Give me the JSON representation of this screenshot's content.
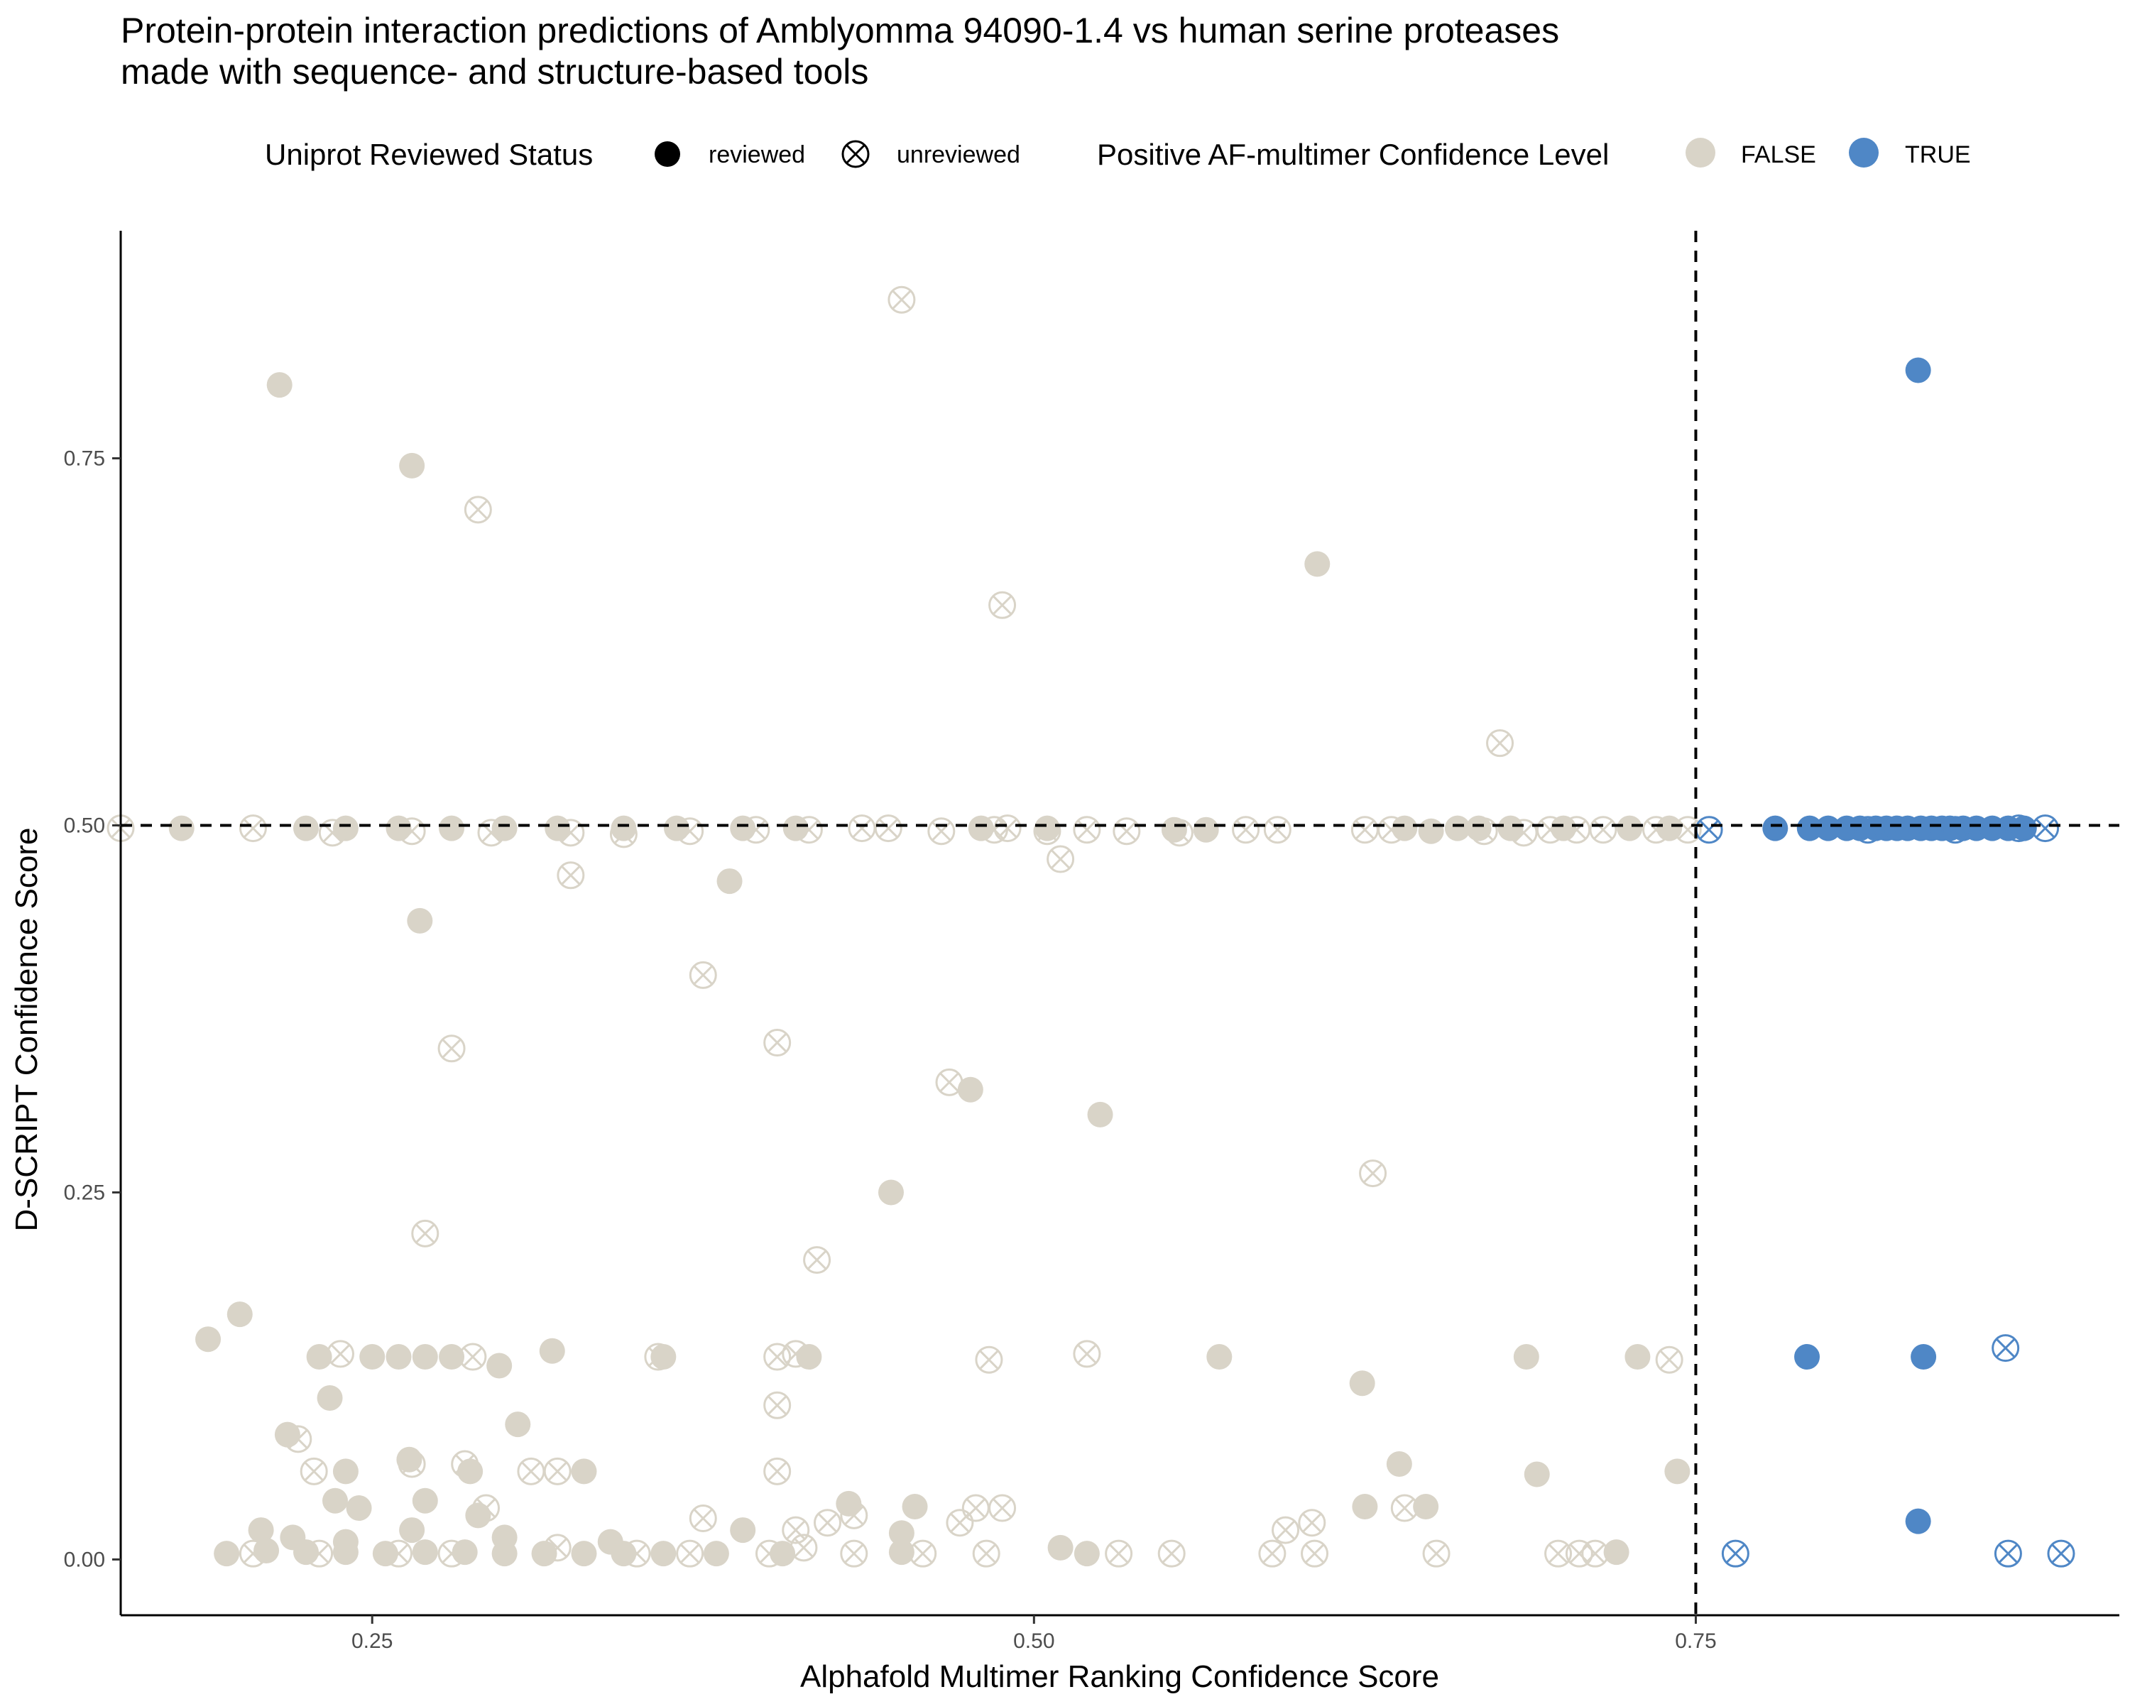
{
  "chart_data": {
    "type": "scatter",
    "title_lines": [
      "Protein-protein interaction predictions of Amblyomma 94090-1.4 vs human serine proteases",
      "made with sequence- and structure-based tools"
    ],
    "xlabel": "Alphafold Multimer Ranking Confidence Score",
    "ylabel": "D-SCRIPT Confidence Score",
    "xlim": [
      0.155,
      0.91
    ],
    "ylim": [
      -0.038,
      0.905
    ],
    "x_ticks": [
      0.25,
      0.5,
      0.75
    ],
    "x_tick_labels": [
      "0.25",
      "0.50",
      "0.75"
    ],
    "y_ticks": [
      0.0,
      0.25,
      0.5,
      0.75
    ],
    "y_tick_labels": [
      "0.00",
      "0.25",
      "0.50",
      "0.75"
    ],
    "reference_lines": {
      "x": 0.75,
      "y": 0.5,
      "style": "dashed"
    },
    "grid": false,
    "legend": {
      "placement": "top",
      "shape_title": "Uniprot Reviewed Status",
      "shape_entries": [
        "reviewed",
        "unreviewed"
      ],
      "color_title": "Positive AF-multimer Confidence Level",
      "color_entries": [
        "FALSE",
        "TRUE"
      ]
    },
    "colors": {
      "FALSE": "#d9d4c8",
      "TRUE": "#4f87c6"
    },
    "series": [
      {
        "name": "FALSE",
        "shape": "reviewed",
        "points": [
          [
            0.215,
            0.8
          ],
          [
            0.265,
            0.745
          ],
          [
            0.607,
            0.678
          ],
          [
            0.268,
            0.435
          ],
          [
            0.385,
            0.462
          ],
          [
            0.476,
            0.32
          ],
          [
            0.525,
            0.303
          ],
          [
            0.446,
            0.25
          ],
          [
            0.2,
            0.167
          ],
          [
            0.188,
            0.15
          ],
          [
            0.23,
            0.138
          ],
          [
            0.25,
            0.138
          ],
          [
            0.26,
            0.138
          ],
          [
            0.27,
            0.138
          ],
          [
            0.28,
            0.138
          ],
          [
            0.298,
            0.132
          ],
          [
            0.318,
            0.142
          ],
          [
            0.36,
            0.138
          ],
          [
            0.415,
            0.138
          ],
          [
            0.57,
            0.138
          ],
          [
            0.686,
            0.138
          ],
          [
            0.728,
            0.138
          ],
          [
            0.234,
            0.11
          ],
          [
            0.624,
            0.12
          ],
          [
            0.218,
            0.085
          ],
          [
            0.305,
            0.092
          ],
          [
            0.264,
            0.068
          ],
          [
            0.24,
            0.06
          ],
          [
            0.287,
            0.06
          ],
          [
            0.33,
            0.06
          ],
          [
            0.638,
            0.065
          ],
          [
            0.69,
            0.058
          ],
          [
            0.743,
            0.06
          ],
          [
            0.236,
            0.04
          ],
          [
            0.245,
            0.035
          ],
          [
            0.27,
            0.04
          ],
          [
            0.29,
            0.03
          ],
          [
            0.43,
            0.038
          ],
          [
            0.455,
            0.036
          ],
          [
            0.625,
            0.036
          ],
          [
            0.648,
            0.036
          ],
          [
            0.208,
            0.02
          ],
          [
            0.22,
            0.015
          ],
          [
            0.24,
            0.012
          ],
          [
            0.265,
            0.02
          ],
          [
            0.3,
            0.015
          ],
          [
            0.34,
            0.012
          ],
          [
            0.39,
            0.02
          ],
          [
            0.45,
            0.018
          ],
          [
            0.195,
            0.004
          ],
          [
            0.21,
            0.006
          ],
          [
            0.225,
            0.005
          ],
          [
            0.24,
            0.005
          ],
          [
            0.255,
            0.004
          ],
          [
            0.27,
            0.005
          ],
          [
            0.285,
            0.005
          ],
          [
            0.3,
            0.004
          ],
          [
            0.315,
            0.004
          ],
          [
            0.33,
            0.004
          ],
          [
            0.345,
            0.004
          ],
          [
            0.36,
            0.004
          ],
          [
            0.38,
            0.004
          ],
          [
            0.405,
            0.004
          ],
          [
            0.45,
            0.005
          ],
          [
            0.51,
            0.008
          ],
          [
            0.52,
            0.004
          ],
          [
            0.72,
            0.005
          ],
          [
            0.178,
            0.498
          ],
          [
            0.225,
            0.498
          ],
          [
            0.24,
            0.498
          ],
          [
            0.26,
            0.498
          ],
          [
            0.28,
            0.498
          ],
          [
            0.3,
            0.498
          ],
          [
            0.32,
            0.498
          ],
          [
            0.345,
            0.498
          ],
          [
            0.365,
            0.498
          ],
          [
            0.39,
            0.498
          ],
          [
            0.41,
            0.498
          ],
          [
            0.48,
            0.498
          ],
          [
            0.505,
            0.498
          ],
          [
            0.553,
            0.497
          ],
          [
            0.565,
            0.497
          ],
          [
            0.64,
            0.498
          ],
          [
            0.65,
            0.496
          ],
          [
            0.66,
            0.498
          ],
          [
            0.668,
            0.498
          ],
          [
            0.68,
            0.498
          ],
          [
            0.7,
            0.498
          ],
          [
            0.725,
            0.498
          ],
          [
            0.74,
            0.498
          ]
        ]
      },
      {
        "name": "FALSE",
        "shape": "unreviewed",
        "points": [
          [
            0.45,
            0.858
          ],
          [
            0.29,
            0.715
          ],
          [
            0.488,
            0.65
          ],
          [
            0.676,
            0.556
          ],
          [
            0.325,
            0.466
          ],
          [
            0.51,
            0.477
          ],
          [
            0.375,
            0.398
          ],
          [
            0.403,
            0.352
          ],
          [
            0.28,
            0.348
          ],
          [
            0.468,
            0.325
          ],
          [
            0.628,
            0.263
          ],
          [
            0.418,
            0.204
          ],
          [
            0.27,
            0.222
          ],
          [
            0.238,
            0.14
          ],
          [
            0.288,
            0.138
          ],
          [
            0.358,
            0.138
          ],
          [
            0.403,
            0.138
          ],
          [
            0.41,
            0.14
          ],
          [
            0.483,
            0.136
          ],
          [
            0.52,
            0.14
          ],
          [
            0.74,
            0.136
          ],
          [
            0.403,
            0.105
          ],
          [
            0.222,
            0.082
          ],
          [
            0.228,
            0.06
          ],
          [
            0.265,
            0.065
          ],
          [
            0.285,
            0.065
          ],
          [
            0.31,
            0.06
          ],
          [
            0.32,
            0.06
          ],
          [
            0.403,
            0.06
          ],
          [
            0.293,
            0.035
          ],
          [
            0.375,
            0.028
          ],
          [
            0.41,
            0.02
          ],
          [
            0.422,
            0.025
          ],
          [
            0.432,
            0.03
          ],
          [
            0.472,
            0.025
          ],
          [
            0.478,
            0.035
          ],
          [
            0.488,
            0.035
          ],
          [
            0.595,
            0.02
          ],
          [
            0.605,
            0.025
          ],
          [
            0.64,
            0.035
          ],
          [
            0.205,
            0.004
          ],
          [
            0.23,
            0.004
          ],
          [
            0.26,
            0.004
          ],
          [
            0.28,
            0.004
          ],
          [
            0.32,
            0.008
          ],
          [
            0.35,
            0.004
          ],
          [
            0.37,
            0.004
          ],
          [
            0.4,
            0.004
          ],
          [
            0.413,
            0.008
          ],
          [
            0.432,
            0.004
          ],
          [
            0.458,
            0.004
          ],
          [
            0.482,
            0.004
          ],
          [
            0.532,
            0.004
          ],
          [
            0.552,
            0.004
          ],
          [
            0.59,
            0.004
          ],
          [
            0.606,
            0.004
          ],
          [
            0.652,
            0.004
          ],
          [
            0.698,
            0.004
          ],
          [
            0.706,
            0.004
          ],
          [
            0.712,
            0.004
          ],
          [
            0.155,
            0.498
          ],
          [
            0.205,
            0.498
          ],
          [
            0.235,
            0.495
          ],
          [
            0.265,
            0.496
          ],
          [
            0.295,
            0.495
          ],
          [
            0.325,
            0.495
          ],
          [
            0.345,
            0.494
          ],
          [
            0.37,
            0.496
          ],
          [
            0.395,
            0.497
          ],
          [
            0.415,
            0.497
          ],
          [
            0.435,
            0.498
          ],
          [
            0.445,
            0.498
          ],
          [
            0.465,
            0.496
          ],
          [
            0.485,
            0.497
          ],
          [
            0.49,
            0.498
          ],
          [
            0.505,
            0.496
          ],
          [
            0.52,
            0.497
          ],
          [
            0.535,
            0.496
          ],
          [
            0.555,
            0.495
          ],
          [
            0.58,
            0.497
          ],
          [
            0.592,
            0.497
          ],
          [
            0.625,
            0.497
          ],
          [
            0.635,
            0.497
          ],
          [
            0.67,
            0.496
          ],
          [
            0.685,
            0.495
          ],
          [
            0.695,
            0.497
          ],
          [
            0.705,
            0.497
          ],
          [
            0.715,
            0.497
          ],
          [
            0.735,
            0.497
          ],
          [
            0.747,
            0.497
          ]
        ]
      },
      {
        "name": "TRUE",
        "shape": "reviewed",
        "points": [
          [
            0.834,
            0.81
          ],
          [
            0.792,
            0.138
          ],
          [
            0.836,
            0.138
          ],
          [
            0.834,
            0.026
          ],
          [
            0.78,
            0.498
          ],
          [
            0.793,
            0.498
          ],
          [
            0.8,
            0.498
          ],
          [
            0.807,
            0.498
          ],
          [
            0.812,
            0.498
          ],
          [
            0.818,
            0.498
          ],
          [
            0.822,
            0.498
          ],
          [
            0.826,
            0.498
          ],
          [
            0.83,
            0.498
          ],
          [
            0.835,
            0.498
          ],
          [
            0.839,
            0.498
          ],
          [
            0.843,
            0.498
          ],
          [
            0.846,
            0.498
          ],
          [
            0.851,
            0.498
          ],
          [
            0.856,
            0.498
          ],
          [
            0.862,
            0.498
          ],
          [
            0.868,
            0.498
          ],
          [
            0.874,
            0.498
          ]
        ]
      },
      {
        "name": "TRUE",
        "shape": "unreviewed",
        "points": [
          [
            0.755,
            0.497
          ],
          [
            0.815,
            0.497
          ],
          [
            0.848,
            0.497
          ],
          [
            0.872,
            0.498
          ],
          [
            0.882,
            0.498
          ],
          [
            0.867,
            0.144
          ],
          [
            0.765,
            0.004
          ],
          [
            0.868,
            0.004
          ],
          [
            0.888,
            0.004
          ]
        ]
      }
    ]
  }
}
